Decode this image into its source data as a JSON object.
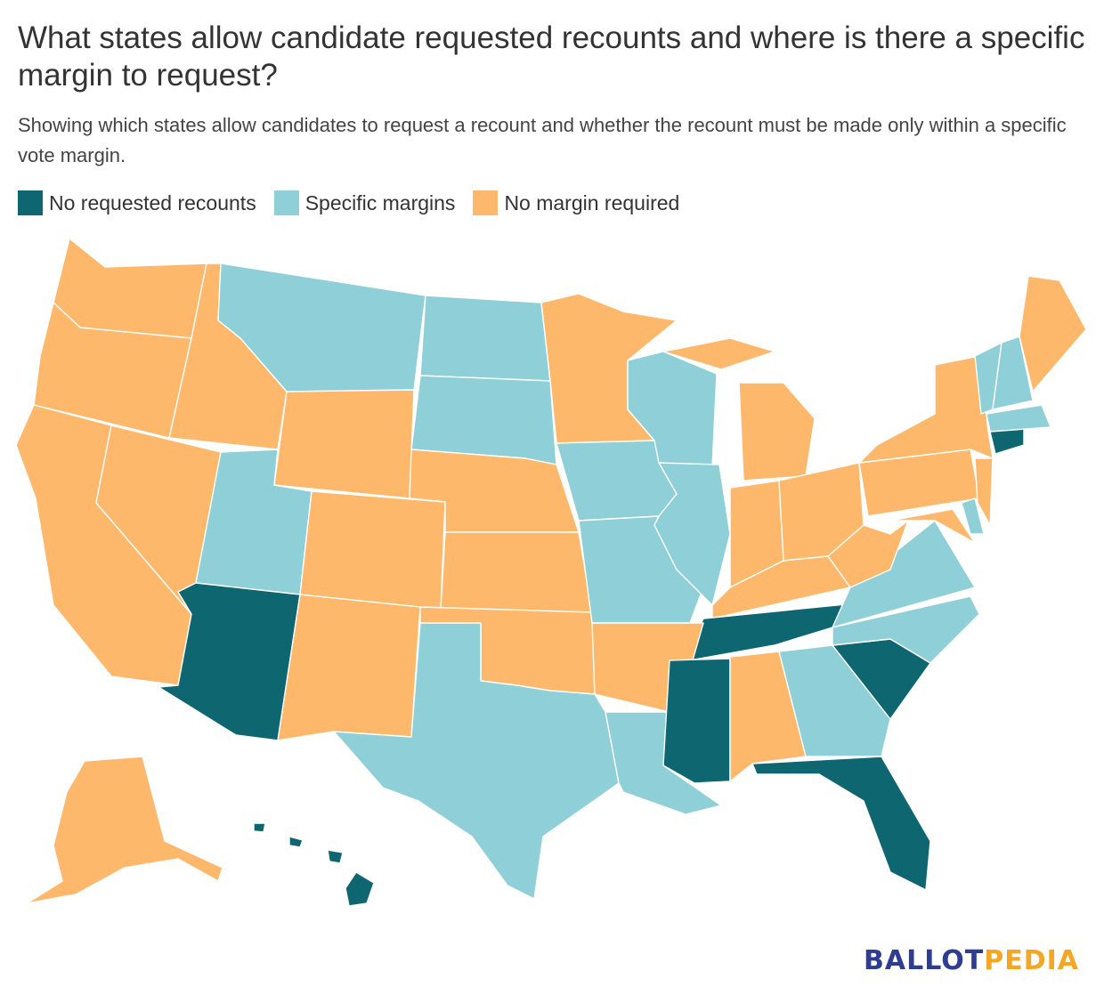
{
  "title": "What states allow candidate requested recounts and where is there a specific margin to request?",
  "subtitle": "Showing which states allow candidates to request a recount and whether the recount must be made only within a specific vote margin.",
  "legend": [
    {
      "label": "No requested recounts",
      "color": "#0e6670"
    },
    {
      "label": "Specific margins",
      "color": "#8fcfd7"
    },
    {
      "label": "No margin required",
      "color": "#fdb86b"
    }
  ],
  "colors": {
    "no_requested": "#0e6670",
    "specific": "#8fcfd7",
    "no_margin": "#fdb86b",
    "border": "#ffffff"
  },
  "logo": {
    "part1": "BALLOT",
    "part2": "PEDIA",
    "color1": "#2e3c91",
    "color2": "#f5a623"
  }
}
